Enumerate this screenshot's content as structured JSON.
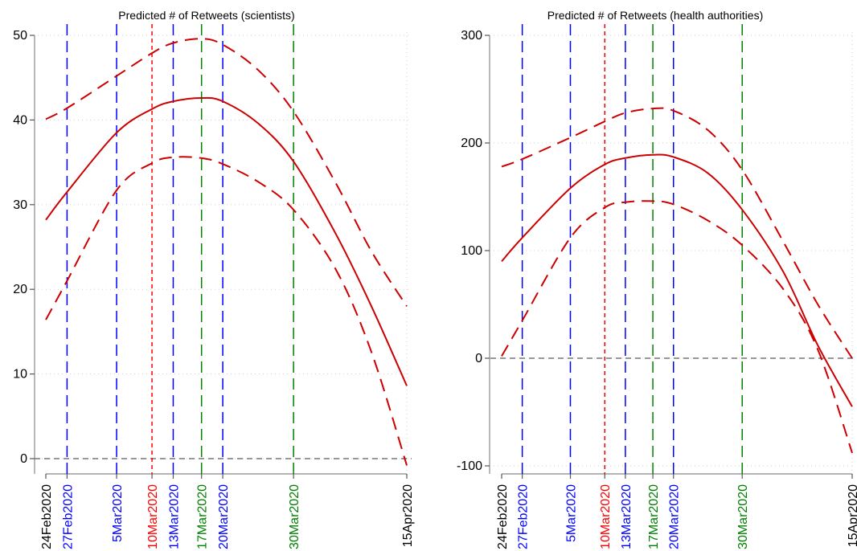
{
  "chart_data": [
    {
      "type": "line",
      "title": "Predicted # of Retweets (scientists)",
      "xlabel": "",
      "ylabel": "",
      "ylim": [
        0,
        50
      ],
      "yticks": [
        0,
        10,
        20,
        30,
        40,
        50
      ],
      "ytick_labels": [
        "0",
        "10",
        "20",
        "30",
        "40",
        "50"
      ],
      "zero_line": 0,
      "x_start": "24Feb2020",
      "x_end": "15Apr2020",
      "xticks": [
        {
          "label": "24Feb2020",
          "color": "#000000"
        },
        {
          "label": "27Feb2020",
          "color": "#0000ff"
        },
        {
          "label": "5Mar2020",
          "color": "#0000ff"
        },
        {
          "label": "10Mar2020",
          "color": "#ff0000"
        },
        {
          "label": "13Mar2020",
          "color": "#0000ff"
        },
        {
          "label": "17Mar2020",
          "color": "#008000"
        },
        {
          "label": "20Mar2020",
          "color": "#0000ff"
        },
        {
          "label": "30Mar2020",
          "color": "#008000"
        },
        {
          "label": "15Apr2020",
          "color": "#000000"
        }
      ],
      "vlines": [
        {
          "date": "27Feb2020",
          "color": "#0000ff",
          "style": "longdash"
        },
        {
          "date": "5Mar2020",
          "color": "#0000ff",
          "style": "longdash"
        },
        {
          "date": "10Mar2020",
          "color": "#ff0000",
          "style": "shortdash"
        },
        {
          "date": "13Mar2020",
          "color": "#0000ff",
          "style": "longdash"
        },
        {
          "date": "17Mar2020",
          "color": "#008000",
          "style": "longdash"
        },
        {
          "date": "20Mar2020",
          "color": "#0000ff",
          "style": "longdash"
        },
        {
          "date": "30Mar2020",
          "color": "#008000",
          "style": "longdash"
        }
      ],
      "grid": true,
      "series": [
        {
          "style": "solid",
          "color": "#cc0000",
          "x": [
            "24Feb2020",
            "27Feb2020",
            "5Mar2020",
            "10Mar2020",
            "13Mar2020",
            "17Mar2020",
            "20Mar2020",
            "25Mar2020",
            "30Mar2020",
            "5Apr2020",
            "10Apr2020",
            "15Apr2020"
          ],
          "y": [
            28.2,
            31.5,
            38.5,
            41.3,
            42.2,
            42.6,
            42.2,
            39.6,
            35.1,
            26.5,
            18.0,
            8.6
          ]
        },
        {
          "style": "dashed",
          "color": "#cc0000",
          "x": [
            "24Feb2020",
            "27Feb2020",
            "5Mar2020",
            "10Mar2020",
            "13Mar2020",
            "17Mar2020",
            "20Mar2020",
            "25Mar2020",
            "30Mar2020",
            "5Apr2020",
            "10Apr2020",
            "15Apr2020"
          ],
          "y": [
            40.1,
            41.4,
            45.2,
            47.9,
            49.1,
            49.6,
            48.9,
            45.9,
            41.0,
            32.5,
            24.5,
            18.0
          ]
        },
        {
          "style": "dashed",
          "color": "#cc0000",
          "x": [
            "24Feb2020",
            "27Feb2020",
            "5Mar2020",
            "10Mar2020",
            "13Mar2020",
            "17Mar2020",
            "20Mar2020",
            "25Mar2020",
            "30Mar2020",
            "5Apr2020",
            "10Apr2020",
            "15Apr2020"
          ],
          "y": [
            16.4,
            21.0,
            31.7,
            34.9,
            35.6,
            35.5,
            34.8,
            32.7,
            29.4,
            22.3,
            12.6,
            -0.8
          ]
        }
      ]
    },
    {
      "type": "line",
      "title": "Predicted # of Retweets (health authorities)",
      "xlabel": "",
      "ylabel": "",
      "ylim": [
        -100,
        300
      ],
      "yticks": [
        -100,
        0,
        100,
        200,
        300
      ],
      "ytick_labels": [
        "-100",
        "0",
        "100",
        "200",
        "300"
      ],
      "zero_line": 0,
      "x_start": "24Feb2020",
      "x_end": "15Apr2020",
      "xticks": [
        {
          "label": "24Feb2020",
          "color": "#000000"
        },
        {
          "label": "27Feb2020",
          "color": "#0000ff"
        },
        {
          "label": "5Mar2020",
          "color": "#0000ff"
        },
        {
          "label": "10Mar2020",
          "color": "#ff0000"
        },
        {
          "label": "13Mar2020",
          "color": "#0000ff"
        },
        {
          "label": "17Mar2020",
          "color": "#008000"
        },
        {
          "label": "20Mar2020",
          "color": "#0000ff"
        },
        {
          "label": "30Mar2020",
          "color": "#008000"
        },
        {
          "label": "15Apr2020",
          "color": "#000000"
        }
      ],
      "vlines": [
        {
          "date": "27Feb2020",
          "color": "#0000ff",
          "style": "longdash"
        },
        {
          "date": "5Mar2020",
          "color": "#0000ff",
          "style": "longdash"
        },
        {
          "date": "10Mar2020",
          "color": "#ff0000",
          "style": "shortdash"
        },
        {
          "date": "13Mar2020",
          "color": "#0000ff",
          "style": "longdash"
        },
        {
          "date": "17Mar2020",
          "color": "#008000",
          "style": "longdash"
        },
        {
          "date": "20Mar2020",
          "color": "#0000ff",
          "style": "longdash"
        },
        {
          "date": "30Mar2020",
          "color": "#008000",
          "style": "longdash"
        }
      ],
      "grid": true,
      "series": [
        {
          "style": "solid",
          "color": "#cc0000",
          "x": [
            "24Feb2020",
            "27Feb2020",
            "5Mar2020",
            "10Mar2020",
            "13Mar2020",
            "17Mar2020",
            "20Mar2020",
            "25Mar2020",
            "30Mar2020",
            "5Apr2020",
            "10Apr2020",
            "15Apr2020"
          ],
          "y": [
            90,
            112,
            158,
            180,
            186,
            189,
            187,
            172,
            138,
            80,
            12,
            -45
          ]
        },
        {
          "style": "dashed",
          "color": "#cc0000",
          "x": [
            "24Feb2020",
            "27Feb2020",
            "5Mar2020",
            "10Mar2020",
            "13Mar2020",
            "17Mar2020",
            "20Mar2020",
            "25Mar2020",
            "30Mar2020",
            "5Apr2020",
            "10Apr2020",
            "15Apr2020"
          ],
          "y": [
            178,
            185,
            205,
            220,
            228,
            232,
            230,
            212,
            175,
            108,
            50,
            0
          ]
        },
        {
          "style": "dashed",
          "color": "#cc0000",
          "x": [
            "24Feb2020",
            "27Feb2020",
            "5Mar2020",
            "10Mar2020",
            "13Mar2020",
            "17Mar2020",
            "20Mar2020",
            "25Mar2020",
            "30Mar2020",
            "5Apr2020",
            "10Apr2020",
            "15Apr2020"
          ],
          "y": [
            2,
            35,
            112,
            140,
            145,
            146,
            143,
            128,
            105,
            64,
            8,
            -88
          ]
        }
      ]
    }
  ]
}
